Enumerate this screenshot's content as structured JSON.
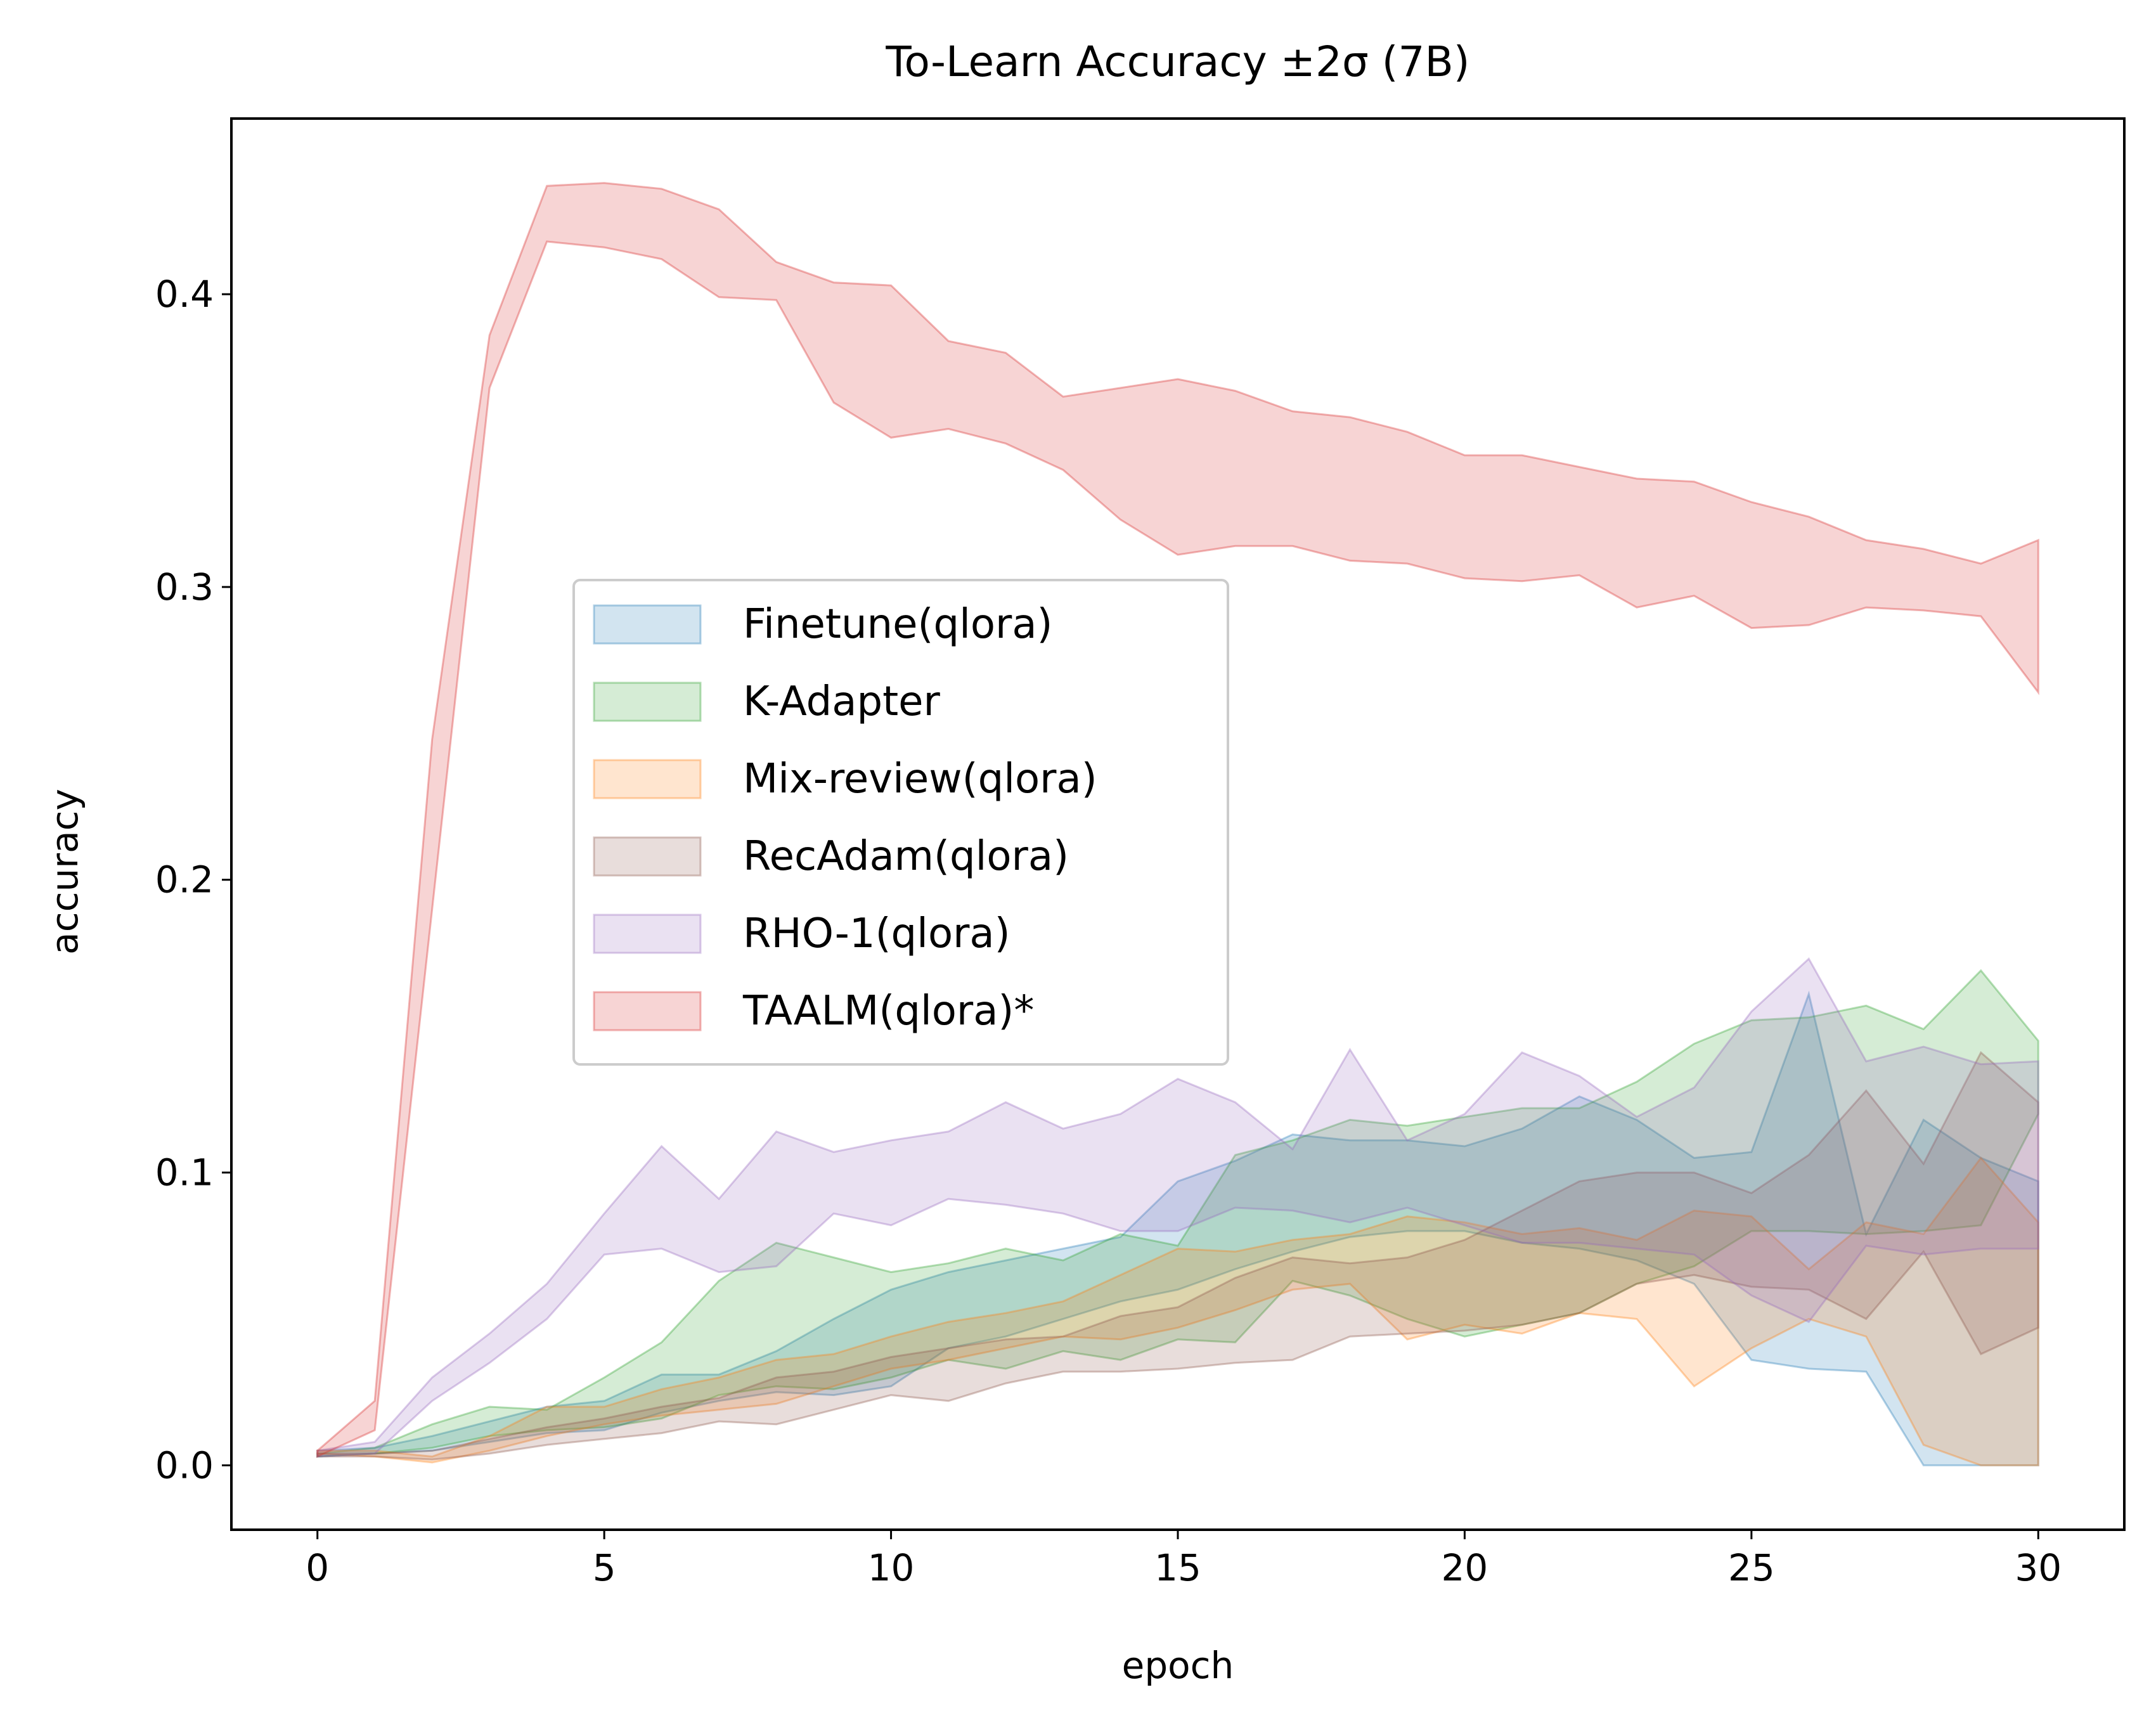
{
  "chart_data": {
    "type": "area",
    "title": "To-Learn Accuracy ±2σ (7B)",
    "xlabel": "epoch",
    "ylabel": "accuracy",
    "xlim": [
      -1.5,
      31.5
    ],
    "ylim": [
      -0.022,
      0.46
    ],
    "x_ticks": [
      0,
      5,
      10,
      15,
      20,
      25,
      30
    ],
    "x_tick_labels": [
      "0",
      "5",
      "10",
      "15",
      "20",
      "25",
      "30"
    ],
    "y_ticks": [
      0.0,
      0.1,
      0.2,
      0.3,
      0.4
    ],
    "y_tick_labels": [
      "0.0",
      "0.1",
      "0.2",
      "0.3",
      "0.4"
    ],
    "grid": false,
    "legend_position": "center-left",
    "x": [
      0,
      1,
      2,
      3,
      4,
      5,
      6,
      7,
      8,
      9,
      10,
      11,
      12,
      13,
      14,
      15,
      16,
      17,
      18,
      19,
      20,
      21,
      22,
      23,
      24,
      25,
      26,
      27,
      28,
      29,
      30
    ],
    "series": [
      {
        "name": "Finetune(qlora)",
        "color": "#1f77b4",
        "lower": [
          0.003,
          0.004,
          0.005,
          0.008,
          0.011,
          0.012,
          0.018,
          0.022,
          0.025,
          0.024,
          0.027,
          0.04,
          0.044,
          0.05,
          0.056,
          0.06,
          0.067,
          0.073,
          0.078,
          0.08,
          0.08,
          0.076,
          0.074,
          0.07,
          0.062,
          0.036,
          0.033,
          0.032,
          0.0,
          0.0,
          0.0
        ],
        "upper": [
          0.005,
          0.006,
          0.01,
          0.015,
          0.02,
          0.022,
          0.031,
          0.031,
          0.039,
          0.05,
          0.06,
          0.066,
          0.07,
          0.074,
          0.078,
          0.097,
          0.104,
          0.113,
          0.111,
          0.111,
          0.109,
          0.115,
          0.126,
          0.118,
          0.105,
          0.107,
          0.161,
          0.079,
          0.118,
          0.105,
          0.097
        ]
      },
      {
        "name": "K-Adapter",
        "color": "#2ca02c",
        "lower": [
          0.003,
          0.004,
          0.006,
          0.01,
          0.012,
          0.013,
          0.016,
          0.024,
          0.027,
          0.026,
          0.03,
          0.036,
          0.033,
          0.039,
          0.036,
          0.043,
          0.042,
          0.063,
          0.058,
          0.05,
          0.044,
          0.048,
          0.052,
          0.062,
          0.068,
          0.08,
          0.08,
          0.079,
          0.08,
          0.082,
          0.12
        ],
        "upper": [
          0.004,
          0.006,
          0.014,
          0.02,
          0.019,
          0.03,
          0.042,
          0.063,
          0.076,
          0.071,
          0.066,
          0.069,
          0.074,
          0.07,
          0.079,
          0.075,
          0.106,
          0.111,
          0.118,
          0.116,
          0.119,
          0.122,
          0.122,
          0.131,
          0.144,
          0.152,
          0.153,
          0.157,
          0.149,
          0.169,
          0.145
        ]
      },
      {
        "name": "Mix-review(qlora)",
        "color": "#ff7f0e",
        "lower": [
          0.004,
          0.003,
          0.001,
          0.005,
          0.01,
          0.014,
          0.017,
          0.019,
          0.021,
          0.027,
          0.033,
          0.036,
          0.04,
          0.044,
          0.043,
          0.047,
          0.053,
          0.06,
          0.062,
          0.043,
          0.048,
          0.045,
          0.052,
          0.05,
          0.027,
          0.04,
          0.05,
          0.044,
          0.007,
          0.0,
          0.0
        ],
        "upper": [
          0.005,
          0.005,
          0.003,
          0.01,
          0.02,
          0.02,
          0.026,
          0.03,
          0.036,
          0.038,
          0.044,
          0.049,
          0.052,
          0.056,
          0.065,
          0.074,
          0.073,
          0.077,
          0.079,
          0.085,
          0.083,
          0.079,
          0.081,
          0.077,
          0.087,
          0.085,
          0.067,
          0.083,
          0.079,
          0.105,
          0.083
        ]
      },
      {
        "name": "RecAdam(qlora)",
        "color": "#8c564b",
        "lower": [
          0.003,
          0.003,
          0.002,
          0.004,
          0.007,
          0.009,
          0.011,
          0.015,
          0.014,
          0.019,
          0.024,
          0.022,
          0.028,
          0.032,
          0.032,
          0.033,
          0.035,
          0.036,
          0.044,
          0.045,
          0.046,
          0.048,
          0.052,
          0.062,
          0.065,
          0.061,
          0.06,
          0.05,
          0.073,
          0.038,
          0.047
        ],
        "upper": [
          0.004,
          0.004,
          0.005,
          0.009,
          0.013,
          0.016,
          0.02,
          0.023,
          0.03,
          0.032,
          0.037,
          0.04,
          0.043,
          0.044,
          0.051,
          0.054,
          0.064,
          0.071,
          0.069,
          0.071,
          0.077,
          0.087,
          0.097,
          0.1,
          0.1,
          0.093,
          0.106,
          0.128,
          0.103,
          0.141,
          0.124
        ]
      },
      {
        "name": "RHO-1(qlora)",
        "color": "#9467bd",
        "lower": [
          0.003,
          0.004,
          0.022,
          0.035,
          0.05,
          0.072,
          0.074,
          0.066,
          0.068,
          0.086,
          0.082,
          0.091,
          0.089,
          0.086,
          0.08,
          0.08,
          0.088,
          0.087,
          0.083,
          0.088,
          0.082,
          0.076,
          0.076,
          0.074,
          0.072,
          0.058,
          0.049,
          0.075,
          0.072,
          0.074,
          0.074
        ],
        "upper": [
          0.005,
          0.008,
          0.03,
          0.045,
          0.062,
          0.086,
          0.109,
          0.091,
          0.114,
          0.107,
          0.111,
          0.114,
          0.124,
          0.115,
          0.12,
          0.132,
          0.124,
          0.108,
          0.142,
          0.111,
          0.12,
          0.141,
          0.133,
          0.119,
          0.129,
          0.155,
          0.173,
          0.138,
          0.143,
          0.137,
          0.138
        ]
      },
      {
        "name": "TAALM(qlora)*",
        "color": "#d62728",
        "lower": [
          0.003,
          0.012,
          0.19,
          0.368,
          0.418,
          0.416,
          0.412,
          0.399,
          0.398,
          0.363,
          0.351,
          0.354,
          0.349,
          0.34,
          0.323,
          0.311,
          0.314,
          0.314,
          0.309,
          0.308,
          0.303,
          0.302,
          0.304,
          0.293,
          0.297,
          0.286,
          0.287,
          0.293,
          0.292,
          0.29,
          0.264
        ],
        "upper": [
          0.005,
          0.022,
          0.248,
          0.386,
          0.437,
          0.438,
          0.436,
          0.429,
          0.411,
          0.404,
          0.403,
          0.384,
          0.38,
          0.365,
          0.368,
          0.371,
          0.367,
          0.36,
          0.358,
          0.353,
          0.345,
          0.345,
          0.341,
          0.337,
          0.336,
          0.329,
          0.324,
          0.316,
          0.313,
          0.308,
          0.316
        ]
      }
    ]
  }
}
